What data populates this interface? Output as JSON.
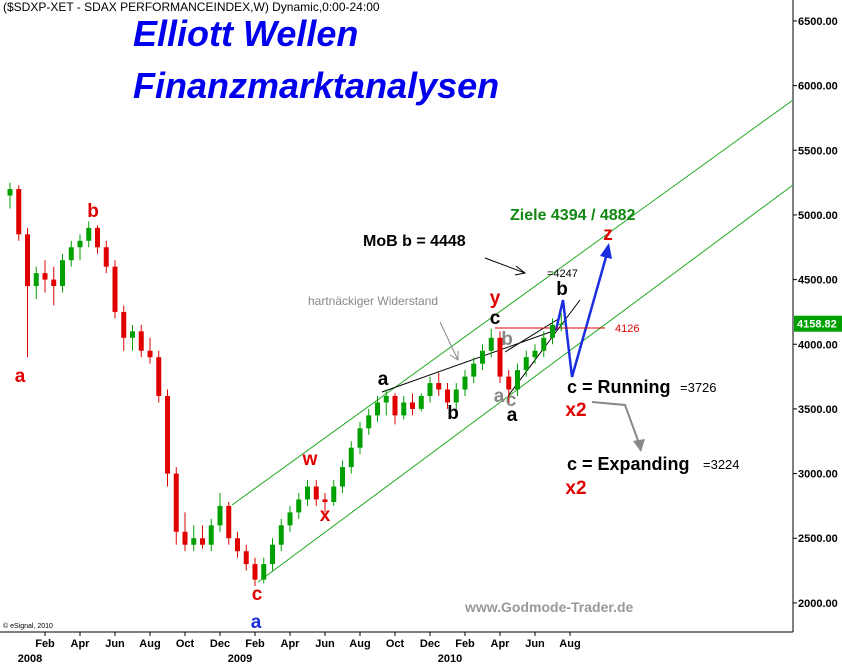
{
  "chart_data": {
    "type": "candlestick",
    "title": "($SDXP-XET - SDAX PERFORMANCEINDEX,W) Dynamic,0:00-24:00",
    "headline": [
      "Elliott Wellen",
      "Finanzmarktanalysen"
    ],
    "categories": [
      null,
      null,
      null,
      null,
      "Feb",
      null,
      null,
      null,
      "Apr",
      null,
      null,
      null,
      "Jun",
      null,
      null,
      null,
      "Aug",
      null,
      null,
      null,
      "Oct",
      null,
      null,
      null,
      "Dec",
      null,
      null,
      null,
      "Feb",
      null,
      null,
      null,
      "Apr",
      null,
      null,
      null,
      "Jun",
      null,
      null,
      null,
      "Aug",
      null,
      null,
      null,
      "Oct",
      null,
      null,
      null,
      "Dec",
      null,
      null,
      null,
      "Feb",
      null,
      null,
      null,
      "Apr",
      null,
      null,
      null,
      "Jun",
      null,
      null,
      null,
      "Aug"
    ],
    "year_labels": [
      "2008",
      "2009",
      "2010"
    ],
    "open": [
      5150,
      5200,
      4850,
      4450,
      4550,
      4500,
      4450,
      4650,
      4750,
      4800,
      4900,
      4750,
      4600,
      4250,
      4050,
      4100,
      3950,
      3900,
      3600,
      3000,
      2550,
      2450,
      2500,
      2450,
      2600,
      2750,
      2500,
      2400,
      2300,
      2180,
      2300,
      2450,
      2600,
      2700,
      2800,
      2900,
      2800,
      2780,
      2900,
      3050,
      3200,
      3350,
      3450,
      3550,
      3600,
      3450,
      3550,
      3500,
      3600,
      3700,
      3650,
      3550,
      3650,
      3750,
      3850,
      3950,
      4050,
      3750,
      3650,
      3800,
      3900,
      3950,
      4050,
      4150,
      null
    ],
    "high": [
      5250,
      5230,
      4900,
      4600,
      4650,
      4600,
      4700,
      4800,
      4850,
      4950,
      4920,
      4800,
      4650,
      4300,
      4150,
      4150,
      4050,
      3950,
      3650,
      3050,
      2700,
      2600,
      2600,
      2650,
      2850,
      2780,
      2550,
      2450,
      2350,
      2350,
      2500,
      2650,
      2750,
      2850,
      2950,
      2950,
      2850,
      2950,
      3100,
      3250,
      3400,
      3500,
      3600,
      3650,
      3620,
      3600,
      3620,
      3620,
      3750,
      3780,
      3700,
      3700,
      3800,
      3900,
      4000,
      4120,
      4100,
      3800,
      3850,
      3950,
      4000,
      4100,
      4200,
      4240,
      null
    ],
    "low": [
      5050,
      4800,
      3900,
      4350,
      4400,
      4300,
      4400,
      4600,
      4650,
      4750,
      4700,
      4550,
      4200,
      3950,
      3950,
      3900,
      3850,
      3550,
      2900,
      2450,
      2400,
      2400,
      2420,
      2400,
      2550,
      2450,
      2350,
      2250,
      2130,
      2150,
      2250,
      2400,
      2550,
      2650,
      2750,
      2750,
      2700,
      2750,
      2850,
      3000,
      3150,
      3300,
      3400,
      3450,
      3380,
      3420,
      3450,
      3480,
      3550,
      3600,
      3500,
      3500,
      3600,
      3700,
      3800,
      3900,
      3700,
      3550,
      3600,
      3750,
      3850,
      3900,
      4000,
      4100,
      null
    ],
    "close": [
      5200,
      4850,
      4450,
      4550,
      4500,
      4450,
      4650,
      4750,
      4800,
      4900,
      4750,
      4600,
      4250,
      4050,
      4100,
      3950,
      3900,
      3600,
      3000,
      2550,
      2450,
      2500,
      2450,
      2600,
      2750,
      2500,
      2400,
      2300,
      2180,
      2300,
      2450,
      2600,
      2700,
      2800,
      2900,
      2800,
      2780,
      2900,
      3050,
      3200,
      3350,
      3450,
      3550,
      3600,
      3450,
      3550,
      3500,
      3600,
      3700,
      3650,
      3550,
      3650,
      3750,
      3850,
      3950,
      4050,
      3750,
      3650,
      3800,
      3900,
      3950,
      4050,
      4150,
      4158.82,
      null
    ],
    "up_color": "#00a000",
    "down_color": "#e00000",
    "ylim": [
      1775,
      6662
    ],
    "yticks": [
      {
        "value": 2000,
        "label": "2000.00"
      },
      {
        "value": 2500,
        "label": "2500.00"
      },
      {
        "value": 3000,
        "label": "3000.00"
      },
      {
        "value": 3500,
        "label": "3500.00"
      },
      {
        "value": 4000,
        "label": "4000.00"
      },
      {
        "value": 4500,
        "label": "4500.00"
      },
      {
        "value": 5000,
        "label": "5000.00"
      },
      {
        "value": 5500,
        "label": "5500.00"
      },
      {
        "value": 6000,
        "label": "6000.00"
      },
      {
        "value": 6500,
        "label": "6500.00"
      }
    ],
    "hline": {
      "value": 4126,
      "color": "#e00000"
    },
    "annotations": [
      "a",
      "b",
      "c",
      "a",
      "w",
      "x",
      "a",
      "b",
      "c",
      "y",
      "b",
      "a",
      "c",
      "a",
      "b",
      "z",
      "x2",
      "x2",
      "c = Running",
      "=3726",
      "c = Expanding",
      "=3224",
      "MoB b = 4448",
      "Ziele 4394 / 4882",
      "=4247",
      "hartnäckiger Widerstand"
    ],
    "source": "www.Godmode-Trader.de",
    "copyright": "© eSignal, 2010"
  }
}
